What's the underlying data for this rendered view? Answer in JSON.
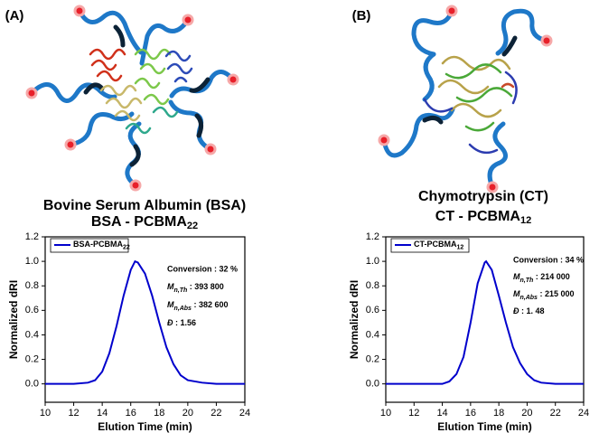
{
  "chart_data": [
    {
      "type": "line",
      "label": "(A)",
      "title": "Bovine Serum Albumin (BSA)",
      "subtitle": "BSA - PCBMA22",
      "x_label": "Elution Time (min)",
      "y_label": "Normalized dRI",
      "x": [
        10,
        12,
        13,
        13.5,
        14,
        14.5,
        15,
        15.5,
        16,
        16.3,
        16.5,
        17,
        17.5,
        18,
        18.5,
        19,
        19.5,
        20,
        21,
        22,
        24
      ],
      "series": [
        {
          "name": "BSA-PCBMA22",
          "color": "#0000cc",
          "values": [
            0,
            0,
            0.01,
            0.03,
            0.1,
            0.25,
            0.47,
            0.72,
            0.93,
            1.0,
            0.99,
            0.9,
            0.72,
            0.5,
            0.3,
            0.16,
            0.07,
            0.03,
            0.01,
            0,
            0
          ]
        }
      ],
      "annotations": [
        "Conversion : 32 %",
        "Mn,Th : 393 800",
        "Mn,Abs : 382 600",
        "Đ : 1.56"
      ],
      "xlim": [
        10,
        24
      ],
      "xticks": [
        10,
        12,
        14,
        16,
        18,
        20,
        22,
        24
      ],
      "ylim": [
        -0.15,
        1.2
      ],
      "yticks": [
        {
          "value": 0,
          "label": "0.0"
        },
        0.2,
        0.4,
        0.6,
        0.8,
        {
          "value": 1,
          "label": "1.0"
        },
        1.2
      ],
      "legend": "upper left"
    },
    {
      "type": "line",
      "label": "(B)",
      "title": "Chymotrypsin (CT)",
      "subtitle": "CT - PCBMA12",
      "x_label": "Elution Time (min)",
      "y_label": "Normalized dRI",
      "x": [
        10,
        14,
        14.5,
        15,
        15.5,
        16,
        16.5,
        17,
        17.1,
        17.5,
        18,
        18.5,
        19,
        19.5,
        20,
        20.5,
        21,
        22,
        24
      ],
      "series": [
        {
          "name": "CT-PCBMA12",
          "color": "#0000cc",
          "values": [
            0,
            0,
            0.02,
            0.08,
            0.22,
            0.5,
            0.82,
            0.99,
            1.0,
            0.93,
            0.72,
            0.5,
            0.3,
            0.17,
            0.08,
            0.03,
            0.01,
            0,
            0
          ]
        }
      ],
      "annotations": [
        "Conversion : 34 %",
        "Mn,Th : 214 000",
        "Mn,Abs : 215 000",
        "Đ : 1. 48"
      ],
      "xlim": [
        10,
        24
      ],
      "xticks": [
        10,
        12,
        14,
        16,
        18,
        20,
        22,
        24
      ],
      "ylim": [
        -0.15,
        1.2
      ],
      "yticks": [
        {
          "value": 0,
          "label": "0.0"
        },
        0.2,
        0.4,
        0.6,
        0.8,
        {
          "value": 1,
          "label": "1.0"
        },
        1.2
      ],
      "legend": "upper left"
    }
  ]
}
